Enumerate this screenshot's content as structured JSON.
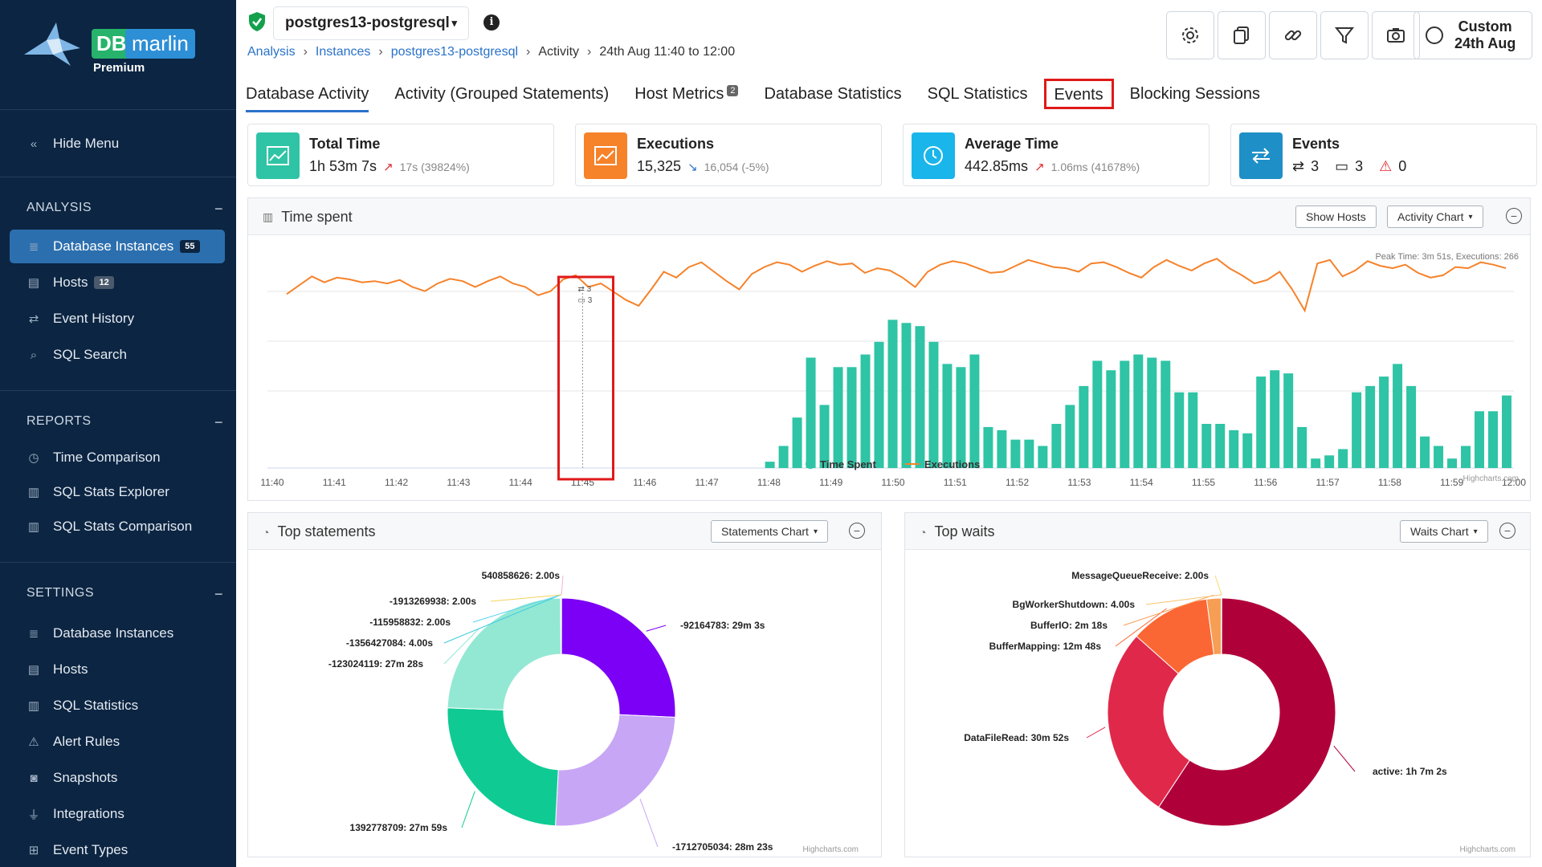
{
  "sidebar": {
    "logo": {
      "db": "DB",
      "marlin": "marlin",
      "tier": "Premium"
    },
    "hide_menu": "Hide Menu",
    "analysis": {
      "title": "ANALYSIS",
      "items": [
        {
          "label": "Database Instances",
          "badge": "55",
          "icon": "database-icon"
        },
        {
          "label": "Hosts",
          "badge": "12",
          "icon": "server-icon"
        },
        {
          "label": "Event History",
          "icon": "swap-arrows-icon"
        },
        {
          "label": "SQL Search",
          "icon": "search-icon"
        }
      ]
    },
    "reports": {
      "title": "REPORTS",
      "items": [
        {
          "label": "Time Comparison",
          "icon": "timer-icon"
        },
        {
          "label": "SQL Stats Explorer",
          "icon": "bar-chart-icon"
        },
        {
          "label": "SQL Stats Comparison",
          "icon": "bar-chart-icon"
        }
      ]
    },
    "settings": {
      "title": "SETTINGS",
      "items": [
        {
          "label": "Database Instances",
          "icon": "database-icon"
        },
        {
          "label": "Hosts",
          "icon": "server-icon"
        },
        {
          "label": "SQL Statistics",
          "icon": "bar-chart-icon"
        },
        {
          "label": "Alert Rules",
          "icon": "warning-icon"
        },
        {
          "label": "Snapshots",
          "icon": "camera-icon"
        },
        {
          "label": "Integrations",
          "icon": "plug-icon"
        },
        {
          "label": "Event Types",
          "icon": "event-types-icon"
        }
      ]
    }
  },
  "header": {
    "instance": "postgres13-postgresql",
    "breadcrumb": [
      "Analysis",
      "Instances",
      "postgres13-postgresql",
      "Activity",
      "24th Aug 11:40 to 12:00"
    ],
    "date_button": {
      "line1": "Custom",
      "line2": "24th Aug"
    },
    "toolbar_icons": [
      "gear-icon",
      "copy-icon",
      "link-icon",
      "filter-icon",
      "camera-icon"
    ]
  },
  "tabs": [
    {
      "label": "Database Activity",
      "active": true
    },
    {
      "label": "Activity (Grouped Statements)"
    },
    {
      "label": "Host Metrics",
      "badge": "2"
    },
    {
      "label": "Database Statistics"
    },
    {
      "label": "SQL Statistics"
    },
    {
      "label": "Events",
      "highlighted": true
    },
    {
      "label": "Blocking Sessions"
    }
  ],
  "kpis": {
    "total_time": {
      "title": "Total Time",
      "value": "1h 53m 7s",
      "delta": "17s (39824%)",
      "color": "#2ec4a5"
    },
    "executions": {
      "title": "Executions",
      "value": "15,325",
      "delta": "16,054 (-5%)",
      "color": "#f6822a"
    },
    "average_time": {
      "title": "Average Time",
      "value": "442.85ms",
      "delta": "1.06ms (41678%)",
      "color": "#1ab5ea"
    },
    "events": {
      "title": "Events",
      "swap_count": "3",
      "calendar_count": "3",
      "warning_count": "0",
      "color": "#1f8fc7"
    }
  },
  "time_spent_panel": {
    "title": "Time spent",
    "show_hosts": "Show Hosts",
    "chart_menu": "Activity Chart",
    "peak_note": "Peak Time: 3m 51s, Executions: 266",
    "credit": "Highcharts.com",
    "event_marker": {
      "swap": "3",
      "calendar": "3"
    }
  },
  "top_statements_panel": {
    "title": "Top statements",
    "chart_menu": "Statements Chart",
    "credit": "Highcharts.com"
  },
  "top_waits_panel": {
    "title": "Top waits",
    "chart_menu": "Waits Chart",
    "credit": "Highcharts.com"
  },
  "chart_data": [
    {
      "type": "bar",
      "name": "time-spent",
      "x_tick_labels": [
        "11:40",
        "11:41",
        "11:42",
        "11:43",
        "11:44",
        "11:45",
        "11:46",
        "11:47",
        "11:48",
        "11:49",
        "11:50",
        "11:51",
        "11:52",
        "11:53",
        "11:54",
        "11:55",
        "11:56",
        "11:57",
        "11:58",
        "11:59",
        "12:00"
      ],
      "series": [
        {
          "name": "Time Spent",
          "type": "column",
          "color": "#2ec4a5",
          "values": [
            0,
            0,
            0,
            0,
            0,
            0,
            0,
            0,
            0,
            0,
            0,
            0,
            0,
            0,
            0,
            0,
            0,
            0,
            0,
            0,
            0,
            0,
            0,
            0,
            0,
            0,
            0,
            0,
            0,
            0,
            0,
            0,
            0,
            0,
            0,
            0,
            0.2,
            0.7,
            1.6,
            3.5,
            2.0,
            3.2,
            3.2,
            3.6,
            4.0,
            4.7,
            4.6,
            4.5,
            4.0,
            3.3,
            3.2,
            3.6,
            1.3,
            1.2,
            0.9,
            0.9,
            0.7,
            1.4,
            2.0,
            2.6,
            3.4,
            3.1,
            3.4,
            3.6,
            3.5,
            3.4,
            2.4,
            2.4,
            1.4,
            1.4,
            1.2,
            1.1,
            2.9,
            3.1,
            3.0,
            1.3,
            0.3,
            0.4,
            0.6,
            2.4,
            2.6,
            2.9,
            3.3,
            2.6,
            1.0,
            0.7,
            0.3,
            0.7,
            1.8,
            1.8,
            2.3
          ]
        },
        {
          "name": "Executions",
          "type": "spline",
          "color": "#f6822a",
          "values": [
            200,
            215,
            230,
            220,
            228,
            225,
            220,
            222,
            218,
            224,
            212,
            205,
            218,
            226,
            222,
            212,
            222,
            230,
            218,
            212,
            198,
            205,
            225,
            232,
            212,
            218,
            204,
            190,
            180,
            208,
            238,
            228,
            246,
            254,
            238,
            222,
            208,
            234,
            246,
            254,
            250,
            238,
            248,
            256,
            250,
            252,
            236,
            244,
            240,
            228,
            212,
            238,
            250,
            256,
            252,
            244,
            236,
            238,
            248,
            258,
            252,
            246,
            244,
            238,
            252,
            254,
            246,
            236,
            228,
            246,
            258,
            248,
            240,
            252,
            260,
            244,
            232,
            218,
            224,
            238,
            208,
            172,
            252,
            258,
            230,
            240,
            256,
            248,
            244,
            250,
            236,
            228,
            232,
            246,
            244,
            254,
            250,
            244
          ]
        }
      ],
      "ylim": [
        0,
        300
      ],
      "legend": "bottom-center"
    },
    {
      "type": "pie",
      "name": "top-statements",
      "donut": true,
      "slices": [
        {
          "label": "540858626: 2.00s",
          "value": 2,
          "color": "#f0b3d6"
        },
        {
          "label": "-92164783: 29m 3s",
          "value": 1743,
          "color": "#7b00f5"
        },
        {
          "label": "-1712705034: 28m 23s",
          "value": 1703,
          "color": "#c7a6f5"
        },
        {
          "label": "1392778709: 27m 59s",
          "value": 1679,
          "color": "#0fcb93"
        },
        {
          "label": "-123024119: 27m 28s",
          "value": 1648,
          "color": "#93e8d3"
        },
        {
          "label": "-1356427084: 4.00s",
          "value": 4,
          "color": "#3fcbe0"
        },
        {
          "label": "-115958832: 2.00s",
          "value": 2,
          "color": "#5ad3f0"
        },
        {
          "label": "-1913269938: 2.00s",
          "value": 2,
          "color": "#f2d35b"
        }
      ]
    },
    {
      "type": "pie",
      "name": "top-waits",
      "donut": true,
      "slices": [
        {
          "label": "MessageQueueReceive: 2.00s",
          "value": 2,
          "color": "#f9d86a"
        },
        {
          "label": "active: 1h 7m 2s",
          "value": 4022,
          "color": "#b0003a"
        },
        {
          "label": "DataFileRead: 30m 52s",
          "value": 1852,
          "color": "#e0284a"
        },
        {
          "label": "BufferMapping: 12m 48s",
          "value": 768,
          "color": "#fb6734"
        },
        {
          "label": "BufferIO: 2m 18s",
          "value": 138,
          "color": "#f79e55"
        },
        {
          "label": "BgWorkerShutdown: 4.00s",
          "value": 4,
          "color": "#f7c46c"
        }
      ]
    }
  ]
}
